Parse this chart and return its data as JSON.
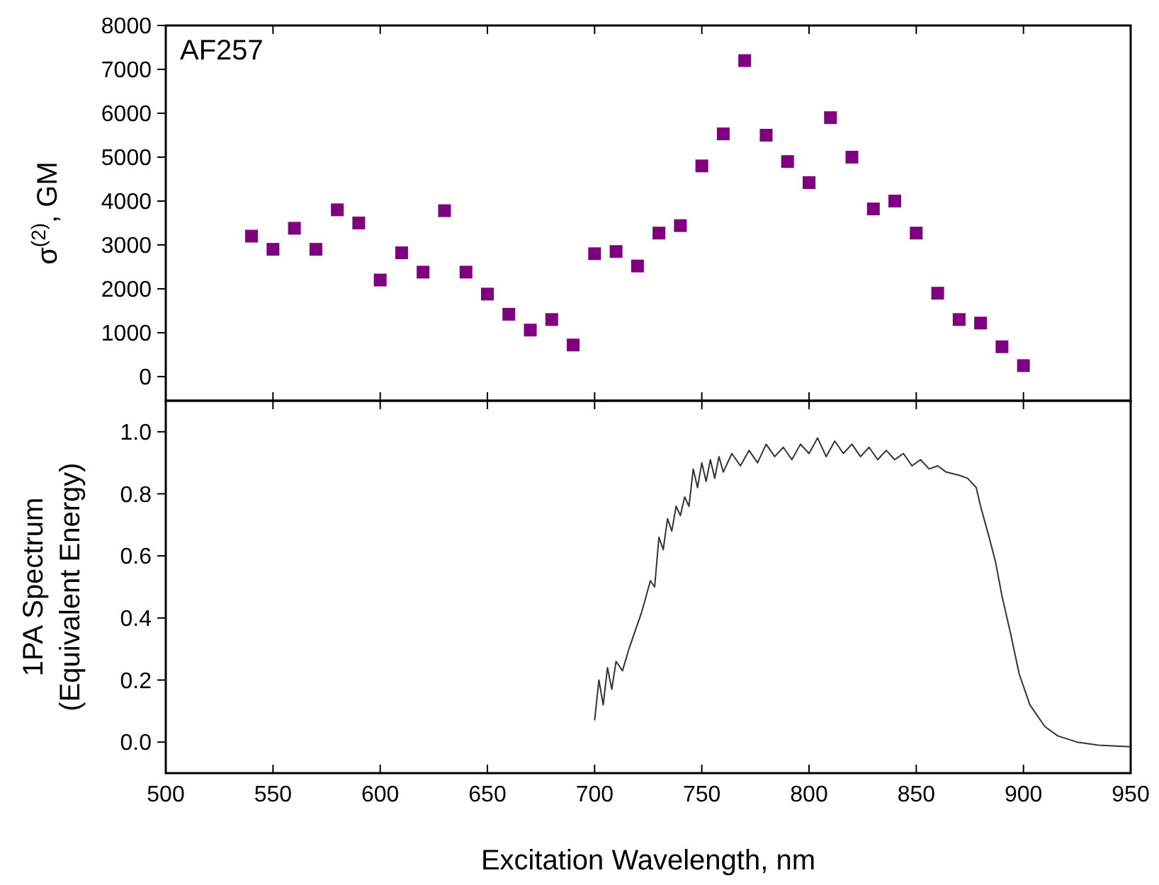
{
  "chart_data": [
    {
      "type": "scatter",
      "ylabel": "σ$^{(2)}$, GM",
      "annotations": [
        "AF257"
      ],
      "marker": "square",
      "xlim": [
        500,
        950
      ],
      "xticks": [
        500,
        550,
        600,
        650,
        700,
        750,
        800,
        850,
        900,
        950
      ],
      "ylim": [
        -550,
        8000
      ],
      "yticks": [
        0,
        1000,
        2000,
        3000,
        4000,
        5000,
        6000,
        7000,
        8000
      ],
      "tick_labels": "y",
      "series": [
        {
          "color": "#7f007f",
          "x": [
            540,
            550,
            560,
            570,
            580,
            590,
            600,
            610,
            620,
            630,
            640,
            650,
            660,
            670,
            680,
            690,
            700,
            710,
            720,
            730,
            740,
            750,
            760,
            770,
            780,
            790,
            800,
            810,
            820,
            830,
            840,
            850,
            860,
            870,
            880,
            890,
            900
          ],
          "values": [
            3200,
            2900,
            3380,
            2900,
            3800,
            3500,
            2200,
            2820,
            2380,
            3780,
            2380,
            1880,
            1420,
            1060,
            1300,
            720,
            2800,
            2850,
            2520,
            3270,
            3440,
            4800,
            5530,
            7200,
            5500,
            4900,
            4420,
            5900,
            5000,
            3820,
            4000,
            3270,
            1900,
            1300,
            1220,
            680,
            250
          ]
        }
      ]
    },
    {
      "type": "line",
      "ylabel": "1PA Spectrum\n(Equivalent Energy)",
      "xlabel": "Excitation Wavelength, nm",
      "line_style": "solid",
      "xlim": [
        500,
        950
      ],
      "xticks": [
        500,
        550,
        600,
        650,
        700,
        750,
        800,
        850,
        900,
        950
      ],
      "ylim": [
        -0.1,
        1.1
      ],
      "yticks": [
        {
          "value": 0,
          "label": "0.0"
        },
        {
          "value": 0.2,
          "label": "0.2"
        },
        {
          "value": 0.4,
          "label": "0.4"
        },
        {
          "value": 0.6,
          "label": "0.6"
        },
        {
          "value": 0.8,
          "label": "0.8"
        },
        {
          "value": 1,
          "label": "1.0"
        }
      ],
      "series": [
        {
          "color": "#333333",
          "x": [
            700,
            702,
            704,
            706,
            708,
            710,
            713,
            716,
            718,
            720,
            722,
            724,
            726,
            728,
            730,
            732,
            734,
            736,
            738,
            740,
            742,
            744,
            746,
            748,
            750,
            752,
            754,
            756,
            758,
            760,
            764,
            768,
            772,
            776,
            780,
            784,
            788,
            792,
            796,
            800,
            804,
            808,
            812,
            816,
            820,
            824,
            828,
            832,
            836,
            840,
            844,
            848,
            852,
            856,
            860,
            864,
            870,
            874,
            878,
            880,
            884,
            887,
            890,
            894,
            898,
            903,
            910,
            916,
            925,
            935,
            950
          ],
          "values": [
            0.07,
            0.2,
            0.12,
            0.24,
            0.17,
            0.26,
            0.23,
            0.3,
            0.34,
            0.38,
            0.42,
            0.47,
            0.52,
            0.5,
            0.66,
            0.62,
            0.72,
            0.68,
            0.76,
            0.73,
            0.79,
            0.76,
            0.88,
            0.82,
            0.9,
            0.84,
            0.91,
            0.85,
            0.92,
            0.87,
            0.93,
            0.89,
            0.94,
            0.9,
            0.96,
            0.92,
            0.95,
            0.91,
            0.96,
            0.93,
            0.98,
            0.92,
            0.97,
            0.93,
            0.96,
            0.92,
            0.95,
            0.91,
            0.94,
            0.91,
            0.93,
            0.89,
            0.91,
            0.88,
            0.89,
            0.87,
            0.86,
            0.85,
            0.82,
            0.76,
            0.66,
            0.58,
            0.47,
            0.35,
            0.22,
            0.12,
            0.05,
            0.02,
            0.0,
            -0.01,
            -0.015
          ]
        }
      ]
    }
  ]
}
